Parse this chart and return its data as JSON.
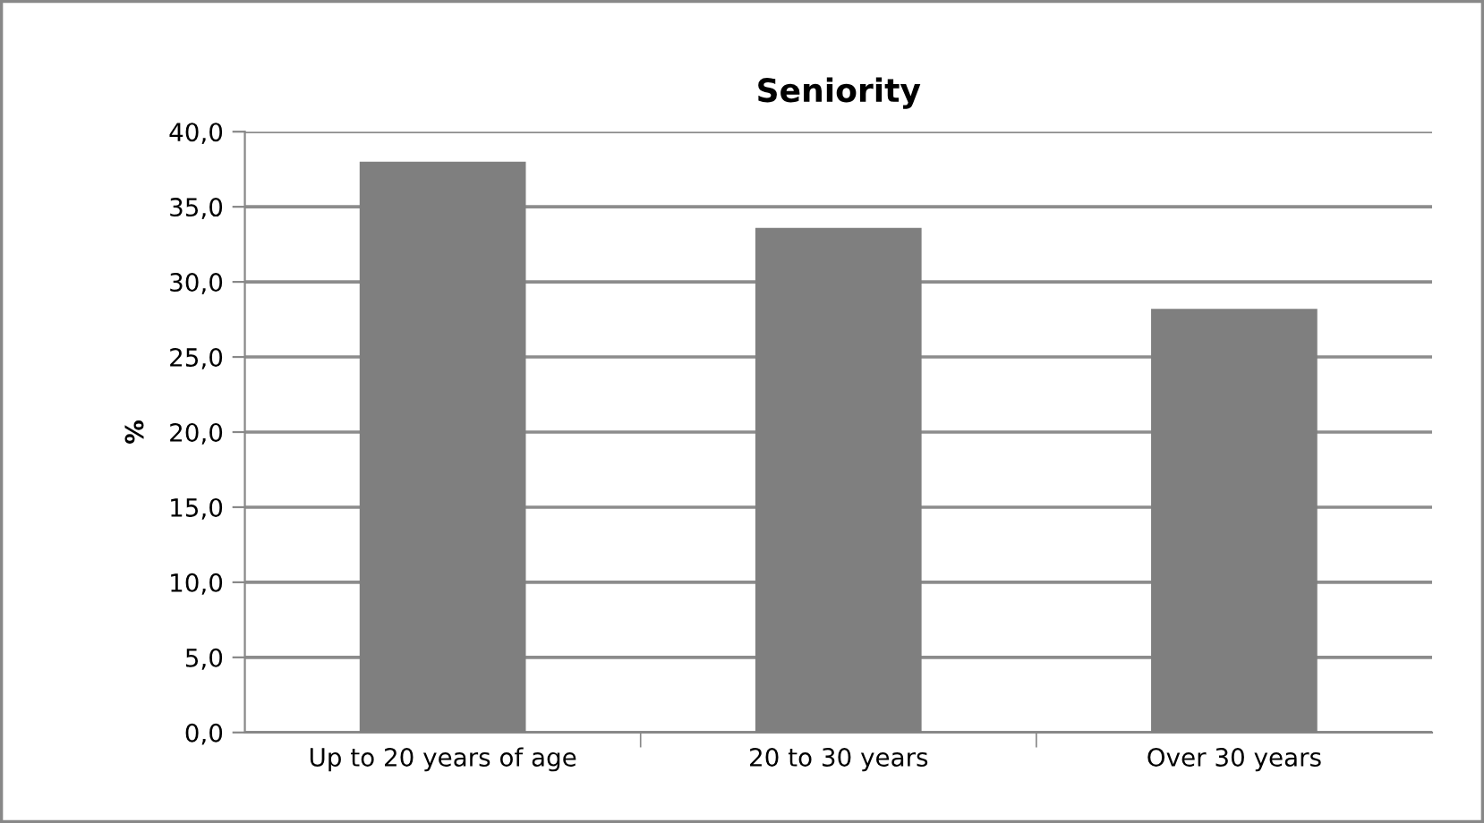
{
  "chart_data": {
    "type": "bar",
    "title": "Seniority",
    "ylabel": "%",
    "categories": [
      "Up to 20 years of age",
      "20 to 30 years",
      "Over 30 years"
    ],
    "values": [
      38.0,
      33.6,
      28.2
    ],
    "color": "#7f7f7f",
    "ylim": [
      0,
      40
    ],
    "yticks": [
      {
        "value": 0,
        "label": "0,0"
      },
      {
        "value": 5,
        "label": "5,0"
      },
      {
        "value": 10,
        "label": "10,0"
      },
      {
        "value": 15,
        "label": "15,0"
      },
      {
        "value": 20,
        "label": "20,0"
      },
      {
        "value": 25,
        "label": "25,0"
      },
      {
        "value": 30,
        "label": "30,0"
      },
      {
        "value": 35,
        "label": "35,0"
      },
      {
        "value": 40,
        "label": "40,0"
      }
    ],
    "grid": "y",
    "legend": false
  }
}
